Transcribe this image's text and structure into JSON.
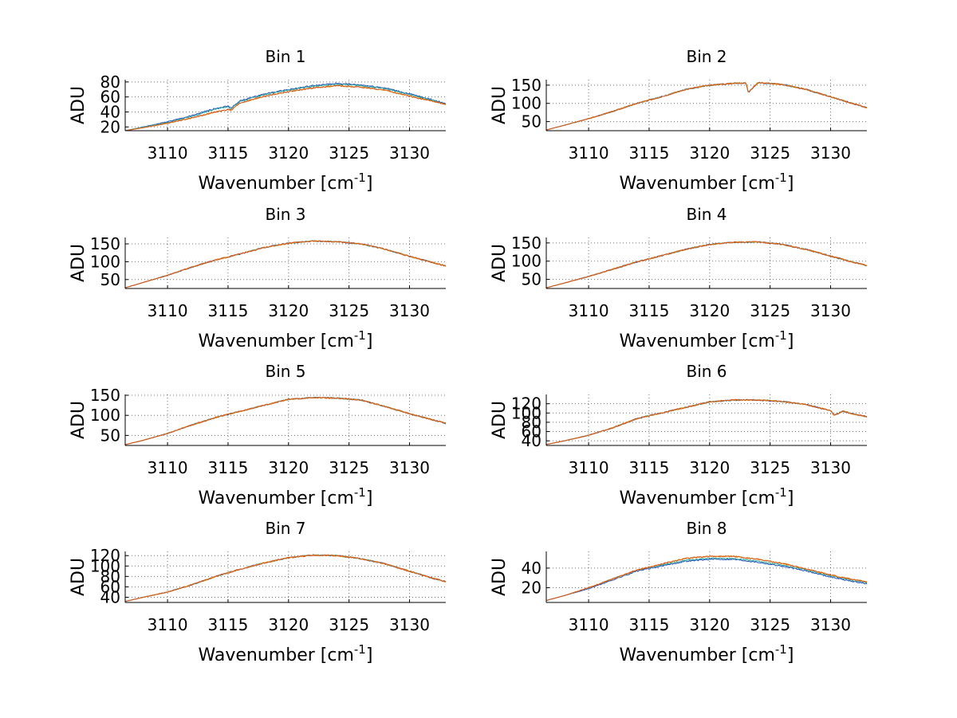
{
  "colors": {
    "series1": "#1f4fbf",
    "series2": "#2aa198",
    "series3": "#e0a020",
    "series4": "#d95319"
  },
  "chart_data": [
    {
      "type": "line",
      "title": "Bin 1",
      "xlabel": "Wavenumber [cm",
      "xlabel_sup": "-1",
      "xlabel_suffix": "]",
      "ylabel": "ADU",
      "xlim": [
        3106.5,
        3133
      ],
      "ylim": [
        15,
        83
      ],
      "xticks": [
        3110,
        3115,
        3120,
        3125,
        3130
      ],
      "yticks": [
        20,
        40,
        60,
        80
      ],
      "grid": true,
      "x": [
        3106.5,
        3108,
        3110,
        3112,
        3114,
        3115,
        3115.2,
        3116,
        3118,
        3120,
        3122,
        3124,
        3126,
        3128,
        3130,
        3132,
        3133
      ],
      "series": [
        {
          "values": [
            15,
            20,
            27,
            35,
            45,
            48,
            45,
            55,
            64,
            70,
            75,
            78,
            76,
            72,
            64,
            56,
            51
          ]
        },
        {
          "values": [
            15,
            20,
            26,
            34,
            44,
            47,
            44,
            54,
            63,
            69,
            74,
            77,
            75,
            71,
            63,
            55,
            50
          ]
        },
        {
          "values": [
            15,
            19,
            25,
            32,
            40,
            43,
            42,
            52,
            61,
            67,
            72,
            75,
            73,
            69,
            61,
            54,
            50
          ]
        },
        {
          "values": [
            15,
            19,
            25,
            32,
            40,
            43,
            42,
            52,
            61,
            67,
            72,
            75,
            73,
            69,
            61,
            54,
            50
          ]
        }
      ]
    },
    {
      "type": "line",
      "title": "Bin 2",
      "xlabel": "Wavenumber [cm",
      "xlabel_sup": "-1",
      "xlabel_suffix": "]",
      "ylabel": "ADU",
      "xlim": [
        3106.5,
        3133
      ],
      "ylim": [
        25,
        165
      ],
      "xticks": [
        3110,
        3115,
        3120,
        3125,
        3130
      ],
      "yticks": [
        50,
        100,
        150
      ],
      "grid": true,
      "x": [
        3106.5,
        3108,
        3110,
        3112,
        3114,
        3116,
        3118,
        3120,
        3122,
        3123,
        3123.2,
        3124,
        3126,
        3128,
        3130,
        3132,
        3133
      ],
      "series": [
        {
          "values": [
            27,
            40,
            58,
            78,
            100,
            118,
            138,
            150,
            155,
            156,
            130,
            157,
            152,
            138,
            118,
            98,
            88
          ]
        },
        {
          "values": [
            27,
            40,
            58,
            78,
            100,
            118,
            138,
            150,
            155,
            156,
            130,
            157,
            152,
            138,
            118,
            98,
            88
          ]
        },
        {
          "values": [
            27,
            40,
            58,
            78,
            100,
            118,
            138,
            150,
            155,
            156,
            130,
            157,
            152,
            138,
            118,
            98,
            88
          ]
        },
        {
          "values": [
            27,
            40,
            58,
            78,
            100,
            118,
            138,
            150,
            155,
            156,
            130,
            157,
            152,
            138,
            118,
            98,
            88
          ]
        }
      ]
    },
    {
      "type": "line",
      "title": "Bin 3",
      "xlabel": "Wavenumber [cm",
      "xlabel_sup": "-1",
      "xlabel_suffix": "]",
      "ylabel": "ADU",
      "xlim": [
        3106.5,
        3133
      ],
      "ylim": [
        25,
        168
      ],
      "xticks": [
        3110,
        3115,
        3120,
        3125,
        3130
      ],
      "yticks": [
        50,
        100,
        150
      ],
      "grid": true,
      "x": [
        3106.5,
        3108,
        3110,
        3112,
        3114,
        3116,
        3118,
        3120,
        3122,
        3124,
        3126,
        3128,
        3130,
        3132,
        3133
      ],
      "series": [
        {
          "values": [
            27,
            42,
            62,
            85,
            105,
            122,
            140,
            152,
            158,
            156,
            150,
            135,
            115,
            97,
            88
          ]
        },
        {
          "values": [
            27,
            42,
            62,
            85,
            105,
            122,
            140,
            152,
            158,
            156,
            150,
            135,
            115,
            97,
            88
          ]
        },
        {
          "values": [
            27,
            42,
            62,
            85,
            105,
            122,
            140,
            152,
            158,
            156,
            150,
            135,
            115,
            97,
            88
          ]
        },
        {
          "values": [
            27,
            42,
            62,
            85,
            105,
            122,
            140,
            152,
            158,
            156,
            150,
            135,
            115,
            97,
            88
          ]
        }
      ]
    },
    {
      "type": "line",
      "title": "Bin 4",
      "xlabel": "Wavenumber [cm",
      "xlabel_sup": "-1",
      "xlabel_suffix": "]",
      "ylabel": "ADU",
      "xlim": [
        3106.5,
        3133
      ],
      "ylim": [
        25,
        165
      ],
      "xticks": [
        3110,
        3115,
        3120,
        3125,
        3130
      ],
      "yticks": [
        50,
        100,
        150
      ],
      "grid": true,
      "x": [
        3106.5,
        3108,
        3110,
        3112,
        3114,
        3116,
        3118,
        3120,
        3122,
        3124,
        3126,
        3128,
        3130,
        3132,
        3133
      ],
      "series": [
        {
          "values": [
            27,
            40,
            58,
            78,
            98,
            115,
            132,
            146,
            152,
            153,
            146,
            132,
            114,
            96,
            88
          ]
        },
        {
          "values": [
            27,
            40,
            58,
            78,
            98,
            115,
            132,
            146,
            152,
            153,
            146,
            132,
            114,
            96,
            88
          ]
        },
        {
          "values": [
            27,
            40,
            58,
            78,
            98,
            115,
            132,
            146,
            152,
            153,
            146,
            132,
            114,
            96,
            88
          ]
        },
        {
          "values": [
            27,
            40,
            58,
            78,
            98,
            115,
            132,
            146,
            152,
            153,
            146,
            132,
            114,
            96,
            88
          ]
        }
      ]
    },
    {
      "type": "line",
      "title": "Bin 5",
      "xlabel": "Wavenumber [cm",
      "xlabel_sup": "-1",
      "xlabel_suffix": "]",
      "ylabel": "ADU",
      "xlim": [
        3106.5,
        3133
      ],
      "ylim": [
        25,
        152
      ],
      "xticks": [
        3110,
        3115,
        3120,
        3125,
        3130
      ],
      "yticks": [
        50,
        100,
        150
      ],
      "grid": true,
      "x": [
        3106.5,
        3108,
        3110,
        3112,
        3114,
        3116,
        3118,
        3120,
        3122,
        3124,
        3126,
        3128,
        3130,
        3132,
        3133
      ],
      "series": [
        {
          "values": [
            27,
            38,
            55,
            76,
            95,
            110,
            125,
            140,
            144,
            143,
            138,
            122,
            104,
            88,
            80
          ]
        },
        {
          "values": [
            27,
            38,
            55,
            76,
            95,
            110,
            125,
            140,
            144,
            143,
            138,
            122,
            104,
            88,
            80
          ]
        },
        {
          "values": [
            27,
            38,
            55,
            76,
            95,
            110,
            125,
            140,
            144,
            143,
            138,
            122,
            104,
            88,
            80
          ]
        },
        {
          "values": [
            27,
            38,
            55,
            76,
            95,
            110,
            125,
            140,
            144,
            143,
            138,
            122,
            104,
            88,
            80
          ]
        }
      ]
    },
    {
      "type": "line",
      "title": "Bin 6",
      "xlabel": "Wavenumber [cm",
      "xlabel_sup": "-1",
      "xlabel_suffix": "]",
      "ylabel": "ADU",
      "xlim": [
        3106.5,
        3133
      ],
      "ylim": [
        30,
        140
      ],
      "xticks": [
        3110,
        3115,
        3120,
        3125,
        3130
      ],
      "yticks": [
        40,
        60,
        80,
        100,
        120
      ],
      "ytick_labels": [
        "40",
        "60",
        "80",
        "100",
        "120"
      ],
      "grid": true,
      "x": [
        3106.5,
        3108,
        3110,
        3112,
        3114,
        3116,
        3118,
        3120,
        3122,
        3124,
        3126,
        3128,
        3130,
        3130.3,
        3131,
        3132,
        3133
      ],
      "series": [
        {
          "values": [
            32,
            40,
            52,
            68,
            88,
            100,
            112,
            124,
            128,
            128,
            125,
            118,
            105,
            95,
            104,
            97,
            92
          ]
        },
        {
          "values": [
            32,
            40,
            52,
            68,
            88,
            100,
            112,
            124,
            128,
            128,
            125,
            118,
            105,
            95,
            104,
            97,
            92
          ]
        },
        {
          "values": [
            32,
            40,
            52,
            68,
            88,
            100,
            112,
            124,
            128,
            128,
            125,
            118,
            105,
            95,
            104,
            97,
            92
          ]
        },
        {
          "values": [
            32,
            40,
            52,
            68,
            88,
            100,
            112,
            124,
            128,
            128,
            125,
            118,
            105,
            95,
            104,
            97,
            92
          ]
        }
      ]
    },
    {
      "type": "line",
      "title": "Bin 7",
      "xlabel": "Wavenumber [cm",
      "xlabel_sup": "-1",
      "xlabel_suffix": "]",
      "ylabel": "ADU",
      "xlim": [
        3106.5,
        3133
      ],
      "ylim": [
        30,
        128
      ],
      "xticks": [
        3110,
        3115,
        3120,
        3125,
        3130
      ],
      "yticks": [
        40,
        60,
        80,
        100,
        120
      ],
      "ytick_labels": [
        "40",
        "60",
        "80",
        "100",
        "120"
      ],
      "grid": true,
      "x": [
        3106.5,
        3108,
        3110,
        3112,
        3114,
        3116,
        3118,
        3120,
        3122,
        3124,
        3126,
        3128,
        3130,
        3132,
        3133
      ],
      "series": [
        {
          "values": [
            32,
            40,
            50,
            64,
            80,
            94,
            106,
            116,
            121,
            120,
            114,
            104,
            90,
            76,
            70
          ]
        },
        {
          "values": [
            32,
            40,
            50,
            64,
            80,
            94,
            106,
            116,
            121,
            120,
            114,
            104,
            90,
            76,
            70
          ]
        },
        {
          "values": [
            32,
            40,
            50,
            64,
            80,
            94,
            106,
            116,
            121,
            120,
            114,
            104,
            90,
            76,
            70
          ]
        },
        {
          "values": [
            32,
            40,
            50,
            64,
            80,
            94,
            106,
            116,
            121,
            120,
            114,
            104,
            90,
            76,
            70
          ]
        }
      ]
    },
    {
      "type": "line",
      "title": "Bin 8",
      "xlabel": "Wavenumber [cm",
      "xlabel_sup": "-1",
      "xlabel_suffix": "]",
      "ylabel": "ADU",
      "xlim": [
        3106.5,
        3133
      ],
      "ylim": [
        5,
        57
      ],
      "xticks": [
        3110,
        3115,
        3120,
        3125,
        3130
      ],
      "yticks": [
        20,
        40
      ],
      "grid": true,
      "x": [
        3106.5,
        3108,
        3110,
        3112,
        3114,
        3116,
        3118,
        3120,
        3122,
        3124,
        3126,
        3128,
        3130,
        3132,
        3133
      ],
      "series": [
        {
          "values": [
            7,
            12,
            19,
            28,
            37,
            42,
            47,
            49,
            49,
            46,
            42,
            37,
            31,
            26,
            24
          ]
        },
        {
          "values": [
            7,
            12,
            20,
            29,
            38,
            43,
            48,
            50,
            50,
            47,
            43,
            38,
            32,
            27,
            25
          ]
        },
        {
          "values": [
            7,
            12,
            20,
            29,
            38,
            44,
            50,
            52,
            52,
            49,
            45,
            39,
            33,
            28,
            26
          ]
        },
        {
          "values": [
            7,
            12,
            20,
            29,
            38,
            44,
            50,
            52,
            52,
            49,
            45,
            39,
            33,
            28,
            26
          ]
        }
      ]
    }
  ]
}
